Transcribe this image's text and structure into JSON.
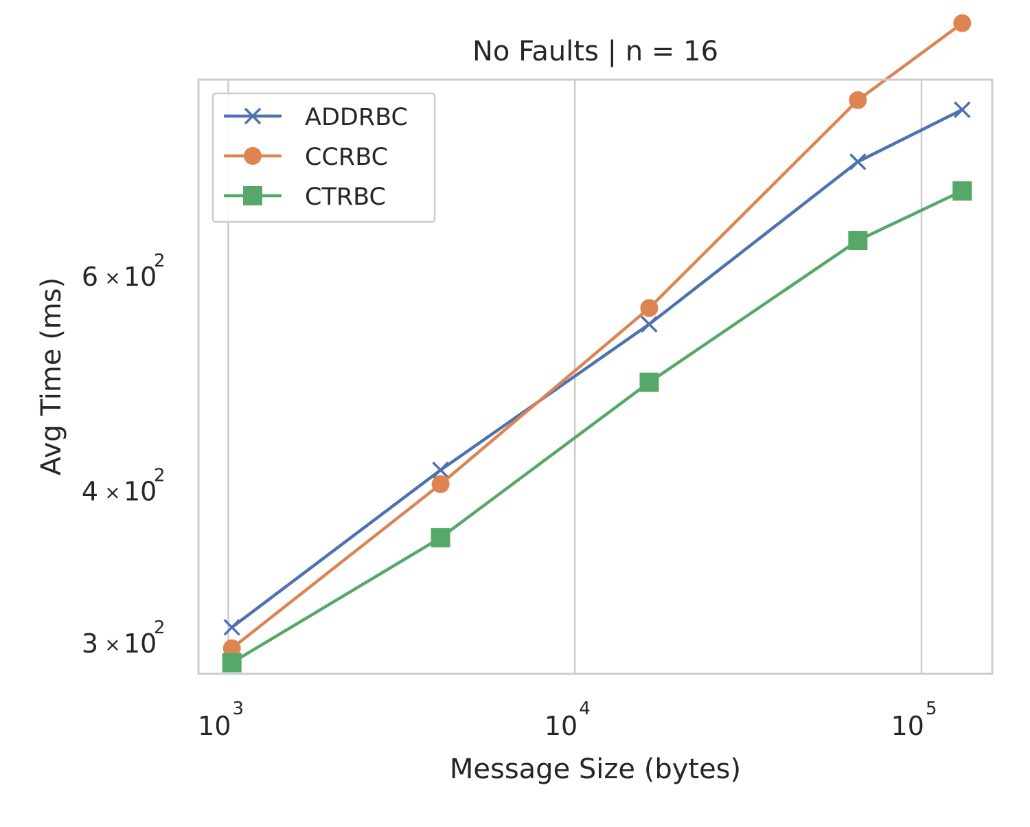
{
  "chart_data": {
    "type": "line",
    "title": "No Faults | n = 16",
    "xlabel": "Message Size (bytes)",
    "ylabel": "Avg Time (ms)",
    "xscale": "log",
    "yscale": "log",
    "xlim": [
      820,
      160000
    ],
    "ylim": [
      283,
      870
    ],
    "x": [
      1024,
      4096,
      16384,
      65536,
      131072
    ],
    "x_ticks": [
      {
        "value": 1000,
        "base": "10",
        "exp": "3"
      },
      {
        "value": 10000,
        "base": "10",
        "exp": "4"
      },
      {
        "value": 100000,
        "base": "10",
        "exp": "5"
      }
    ],
    "y_ticks": [
      {
        "value": 300,
        "mant": "3",
        "times": "×",
        "base": "10",
        "exp": "2"
      },
      {
        "value": 400,
        "mant": "4",
        "times": "×",
        "base": "10",
        "exp": "2"
      },
      {
        "value": 600,
        "mant": "6",
        "times": "×",
        "base": "10",
        "exp": "2"
      }
    ],
    "grid": "x-major",
    "legend_position": "top-left",
    "series": [
      {
        "name": "ADDRBC",
        "marker": "x",
        "color": "#4c72b0",
        "values": [
          309,
          416,
          548,
          745,
          822
        ]
      },
      {
        "name": "CCRBC",
        "marker": "circle",
        "color": "#dd8452",
        "values": [
          297,
          405,
          565,
          837,
          968
        ]
      },
      {
        "name": "CTRBC",
        "marker": "square",
        "color": "#55a868",
        "values": [
          289,
          366,
          491,
          642,
          705
        ]
      }
    ]
  }
}
